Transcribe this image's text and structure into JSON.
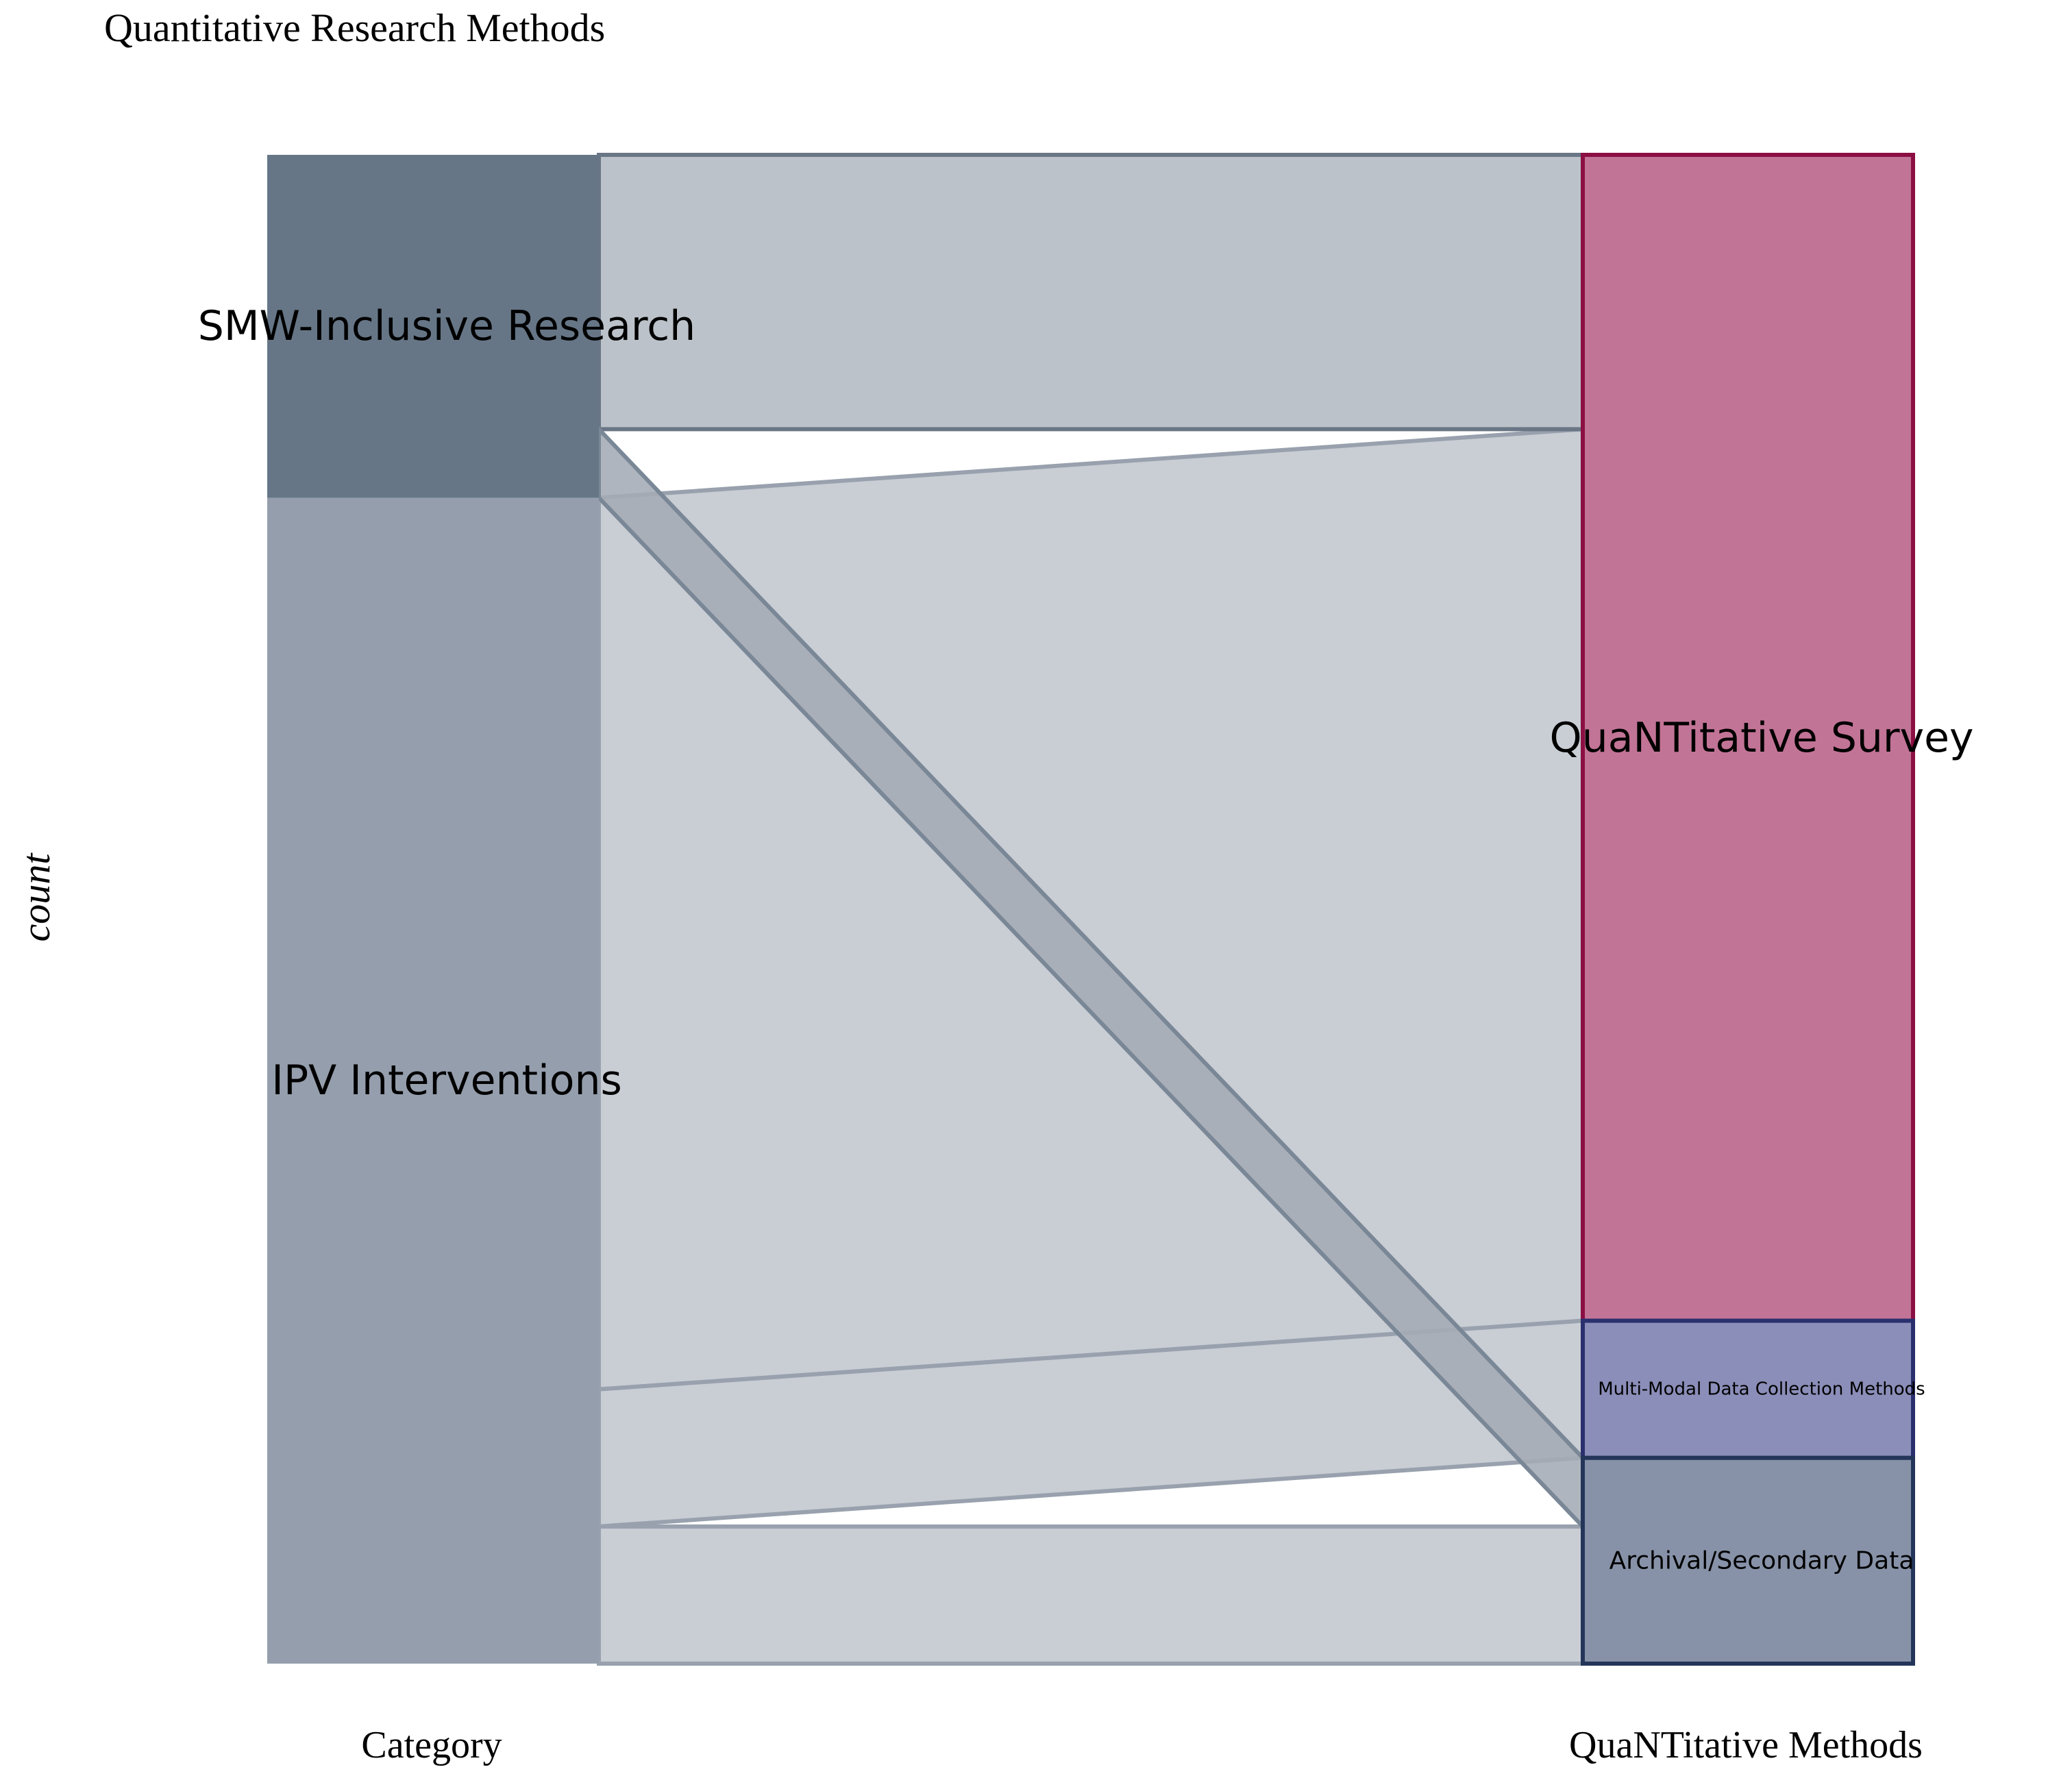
{
  "chart_data": {
    "type": "alluvial",
    "title": "Quantitative Research Methods",
    "ylabel": "count",
    "axes": [
      "Category",
      "QuaNTitative Methods"
    ],
    "left_nodes": [
      {
        "name": "SMW-Inclusive Research",
        "value": 5,
        "fill": "#667686",
        "label_size": "large"
      },
      {
        "name": "IPV Interventions",
        "value": 17,
        "fill": "#959eac",
        "label_size": "large"
      }
    ],
    "right_nodes": [
      {
        "name": "QuaNTitative Survey",
        "value": 17,
        "fill": "#c27496",
        "stroke": "#8b0f43",
        "label_size": "large"
      },
      {
        "name": "Multi-Modal Data Collection Methods",
        "value": 2,
        "fill": "#8b8eb8",
        "stroke": "#2a2f6e",
        "label_size": "small"
      },
      {
        "name": "Archival/Secondary Data",
        "value": 3,
        "fill": "#8792a8",
        "stroke": "#243559",
        "label_size": "medium"
      }
    ],
    "flows": [
      {
        "source": "SMW-Inclusive Research",
        "target": "QuaNTitative Survey",
        "value": 4,
        "fill": "#b3b9c1",
        "stroke": "#6a7686"
      },
      {
        "source": "SMW-Inclusive Research",
        "target": "Archival/Secondary Data",
        "value": 1,
        "fill": "#a4abb5",
        "stroke": "#7a8796"
      },
      {
        "source": "IPV Interventions",
        "target": "QuaNTitative Survey",
        "value": 13,
        "fill": "#c9cdd4",
        "stroke": "#98a1ad"
      },
      {
        "source": "IPV Interventions",
        "target": "Multi-Modal Data Collection Methods",
        "value": 2,
        "fill": "#c9cdd4",
        "stroke": "#98a1ad"
      },
      {
        "source": "IPV Interventions",
        "target": "Archival/Secondary Data",
        "value": 2,
        "fill": "#c9cdd4",
        "stroke": "#98a1ad"
      }
    ]
  }
}
